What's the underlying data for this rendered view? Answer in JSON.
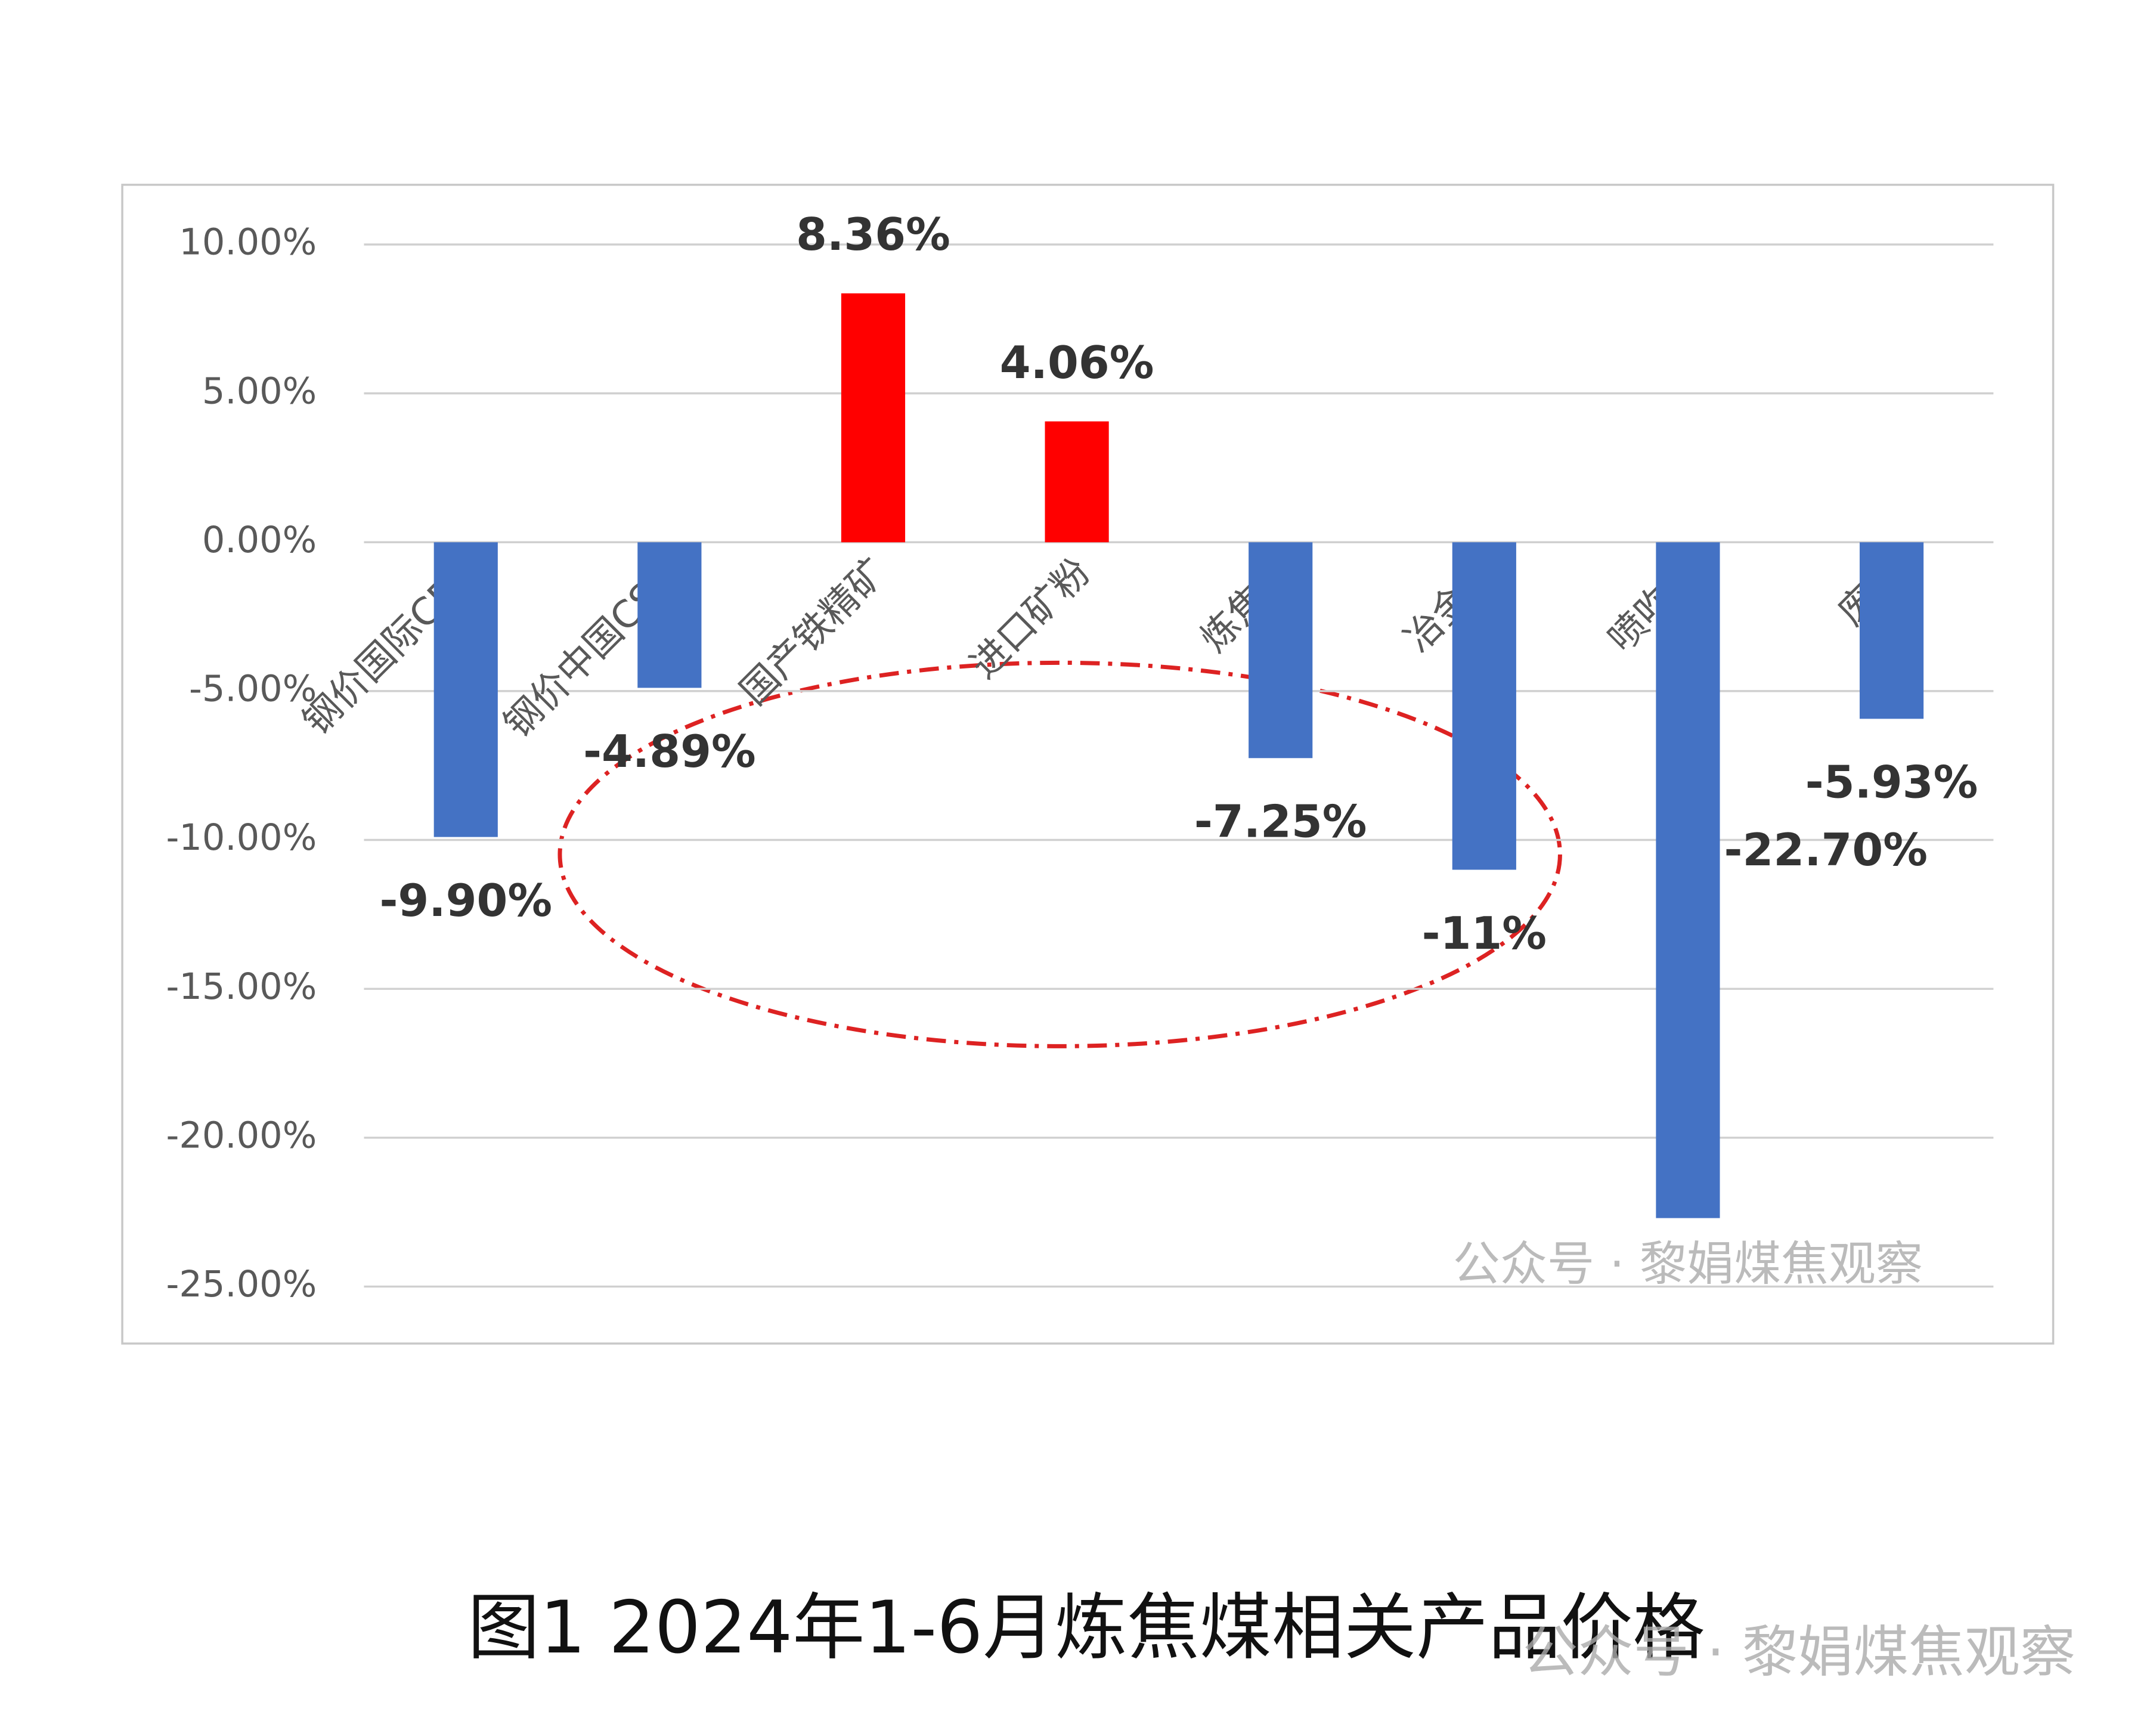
{
  "chart_data": {
    "type": "bar",
    "caption": "图1  2024年1-6月炼焦煤相关产品价格",
    "watermark": "公众号 · 黎娟煤焦观察",
    "categories": [
      "钢价国际CRU",
      "钢价中国CSPI",
      "国产铁精矿",
      "进口矿粉",
      "炼焦煤",
      "冶金焦",
      "喷吹煤",
      "废钢"
    ],
    "values": [
      -9.9,
      -4.89,
      8.36,
      4.06,
      -7.25,
      -11,
      -22.7,
      -5.93
    ],
    "value_labels": [
      "-9.90%",
      "-4.89%",
      "8.36%",
      "4.06%",
      "-7.25%",
      "-11%",
      "-22.70%",
      "-5.93%"
    ],
    "colors": [
      "#4472c4",
      "#4472c4",
      "#ff0000",
      "#ff0000",
      "#4472c4",
      "#4472c4",
      "#4472c4",
      "#4472c4"
    ],
    "ylim": [
      -25,
      10
    ],
    "yticks": [
      {
        "value": 10,
        "label": "10.00%"
      },
      {
        "value": 5,
        "label": "5.00%"
      },
      {
        "value": 0,
        "label": "0.00%"
      },
      {
        "value": -5,
        "label": "-5.00%"
      },
      {
        "value": -10,
        "label": "-10.00%"
      },
      {
        "value": -15,
        "label": "-15.00%"
      },
      {
        "value": -20,
        "label": "-20.00%"
      },
      {
        "value": -25,
        "label": "-25.00%"
      }
    ],
    "grid": true
  }
}
